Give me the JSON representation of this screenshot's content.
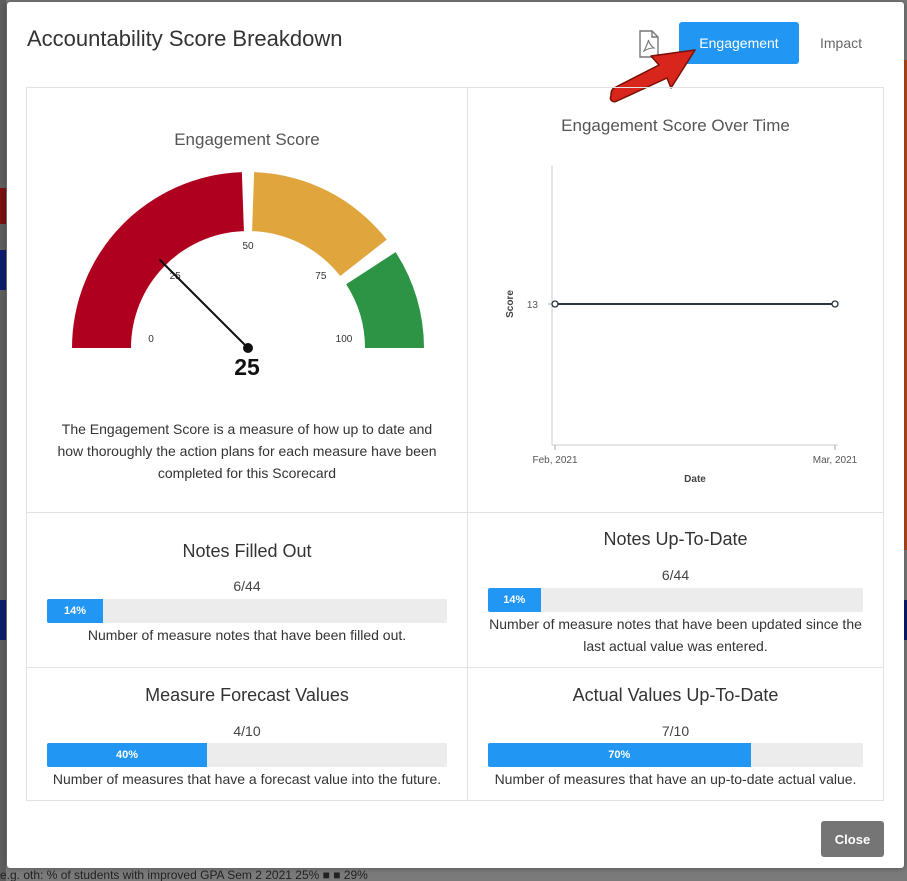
{
  "background": {
    "bottom_text": "e.g. oth: % of students with improved GPA        Sem 2 2021     25%          ■         ■         29%"
  },
  "modal": {
    "title": "Accountability Score Breakdown",
    "pdf_icon": "pdf-icon",
    "tabs": {
      "engagement": "Engagement",
      "impact": "Impact"
    },
    "close_label": "Close"
  },
  "gauge": {
    "title": "Engagement Score",
    "value": "25",
    "ticks": [
      "0",
      "25",
      "50",
      "75",
      "100"
    ],
    "colors": {
      "low": "#b00020",
      "mid": "#e0a53c",
      "high": "#2e9445"
    },
    "description": "The Engagement Score is a measure of how up to date and how thoroughly the action plans for each measure have been completed for this Scorecard"
  },
  "chart_data": {
    "type": "line",
    "title": "Engagement Score Over Time",
    "xlabel": "Date",
    "ylabel": "Score",
    "x": [
      "Feb, 2021",
      "Mar, 2021"
    ],
    "series": [
      {
        "values": [
          13,
          13
        ]
      }
    ],
    "ytick_labels": [
      "13"
    ],
    "grid": false
  },
  "metrics": {
    "notes_filled": {
      "title": "Notes Filled Out",
      "count": "6/44",
      "percent_label": "14%",
      "fraction": 0.14,
      "description": "Number of measure notes that have been filled out."
    },
    "notes_uptodate": {
      "title": "Notes Up-To-Date",
      "count": "6/44",
      "percent_label": "14%",
      "fraction": 0.14,
      "description": "Number of measure notes that have been updated since the last actual value was entered."
    },
    "forecast": {
      "title": "Measure Forecast Values",
      "count": "4/10",
      "percent_label": "40%",
      "fraction": 0.4,
      "description": "Number of measures that have a forecast value into the future."
    },
    "actual_uptodate": {
      "title": "Actual Values Up-To-Date",
      "count": "7/10",
      "percent_label": "70%",
      "fraction": 0.7,
      "description": "Number of measures that have an up-to-date actual value."
    }
  }
}
